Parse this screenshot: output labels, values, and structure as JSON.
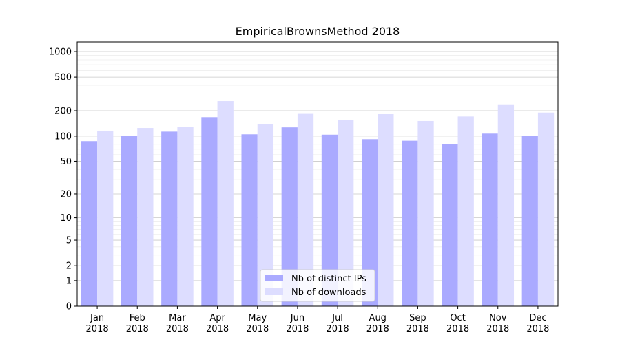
{
  "chart_data": {
    "type": "bar",
    "title": "EmpiricalBrownsMethod 2018",
    "xlabel": "",
    "ylabel": "",
    "y_scale": "symlog",
    "ylim": [
      0,
      1300
    ],
    "yticks": [
      0,
      1,
      2,
      5,
      10,
      20,
      50,
      100,
      200,
      500,
      1000
    ],
    "ytick_labels": [
      "0",
      "1",
      "2",
      "5",
      "10",
      "20",
      "50",
      "100",
      "200",
      "500",
      "1000"
    ],
    "categories": [
      [
        "Jan",
        "2018"
      ],
      [
        "Feb",
        "2018"
      ],
      [
        "Mar",
        "2018"
      ],
      [
        "Apr",
        "2018"
      ],
      [
        "May",
        "2018"
      ],
      [
        "Jun",
        "2018"
      ],
      [
        "Jul",
        "2018"
      ],
      [
        "Aug",
        "2018"
      ],
      [
        "Sep",
        "2018"
      ],
      [
        "Oct",
        "2018"
      ],
      [
        "Nov",
        "2018"
      ],
      [
        "Dec",
        "2018"
      ]
    ],
    "series": [
      {
        "name": "Nb of distinct IPs",
        "color": "#aaaaff",
        "values": [
          87,
          101,
          113,
          168,
          105,
          127,
          104,
          92,
          88,
          81,
          107,
          101
        ]
      },
      {
        "name": "Nb of downloads",
        "color": "#ddddff",
        "values": [
          116,
          125,
          128,
          260,
          140,
          187,
          155,
          184,
          151,
          171,
          238,
          190
        ]
      }
    ],
    "grid": true,
    "legend_position": "bottom-center"
  }
}
